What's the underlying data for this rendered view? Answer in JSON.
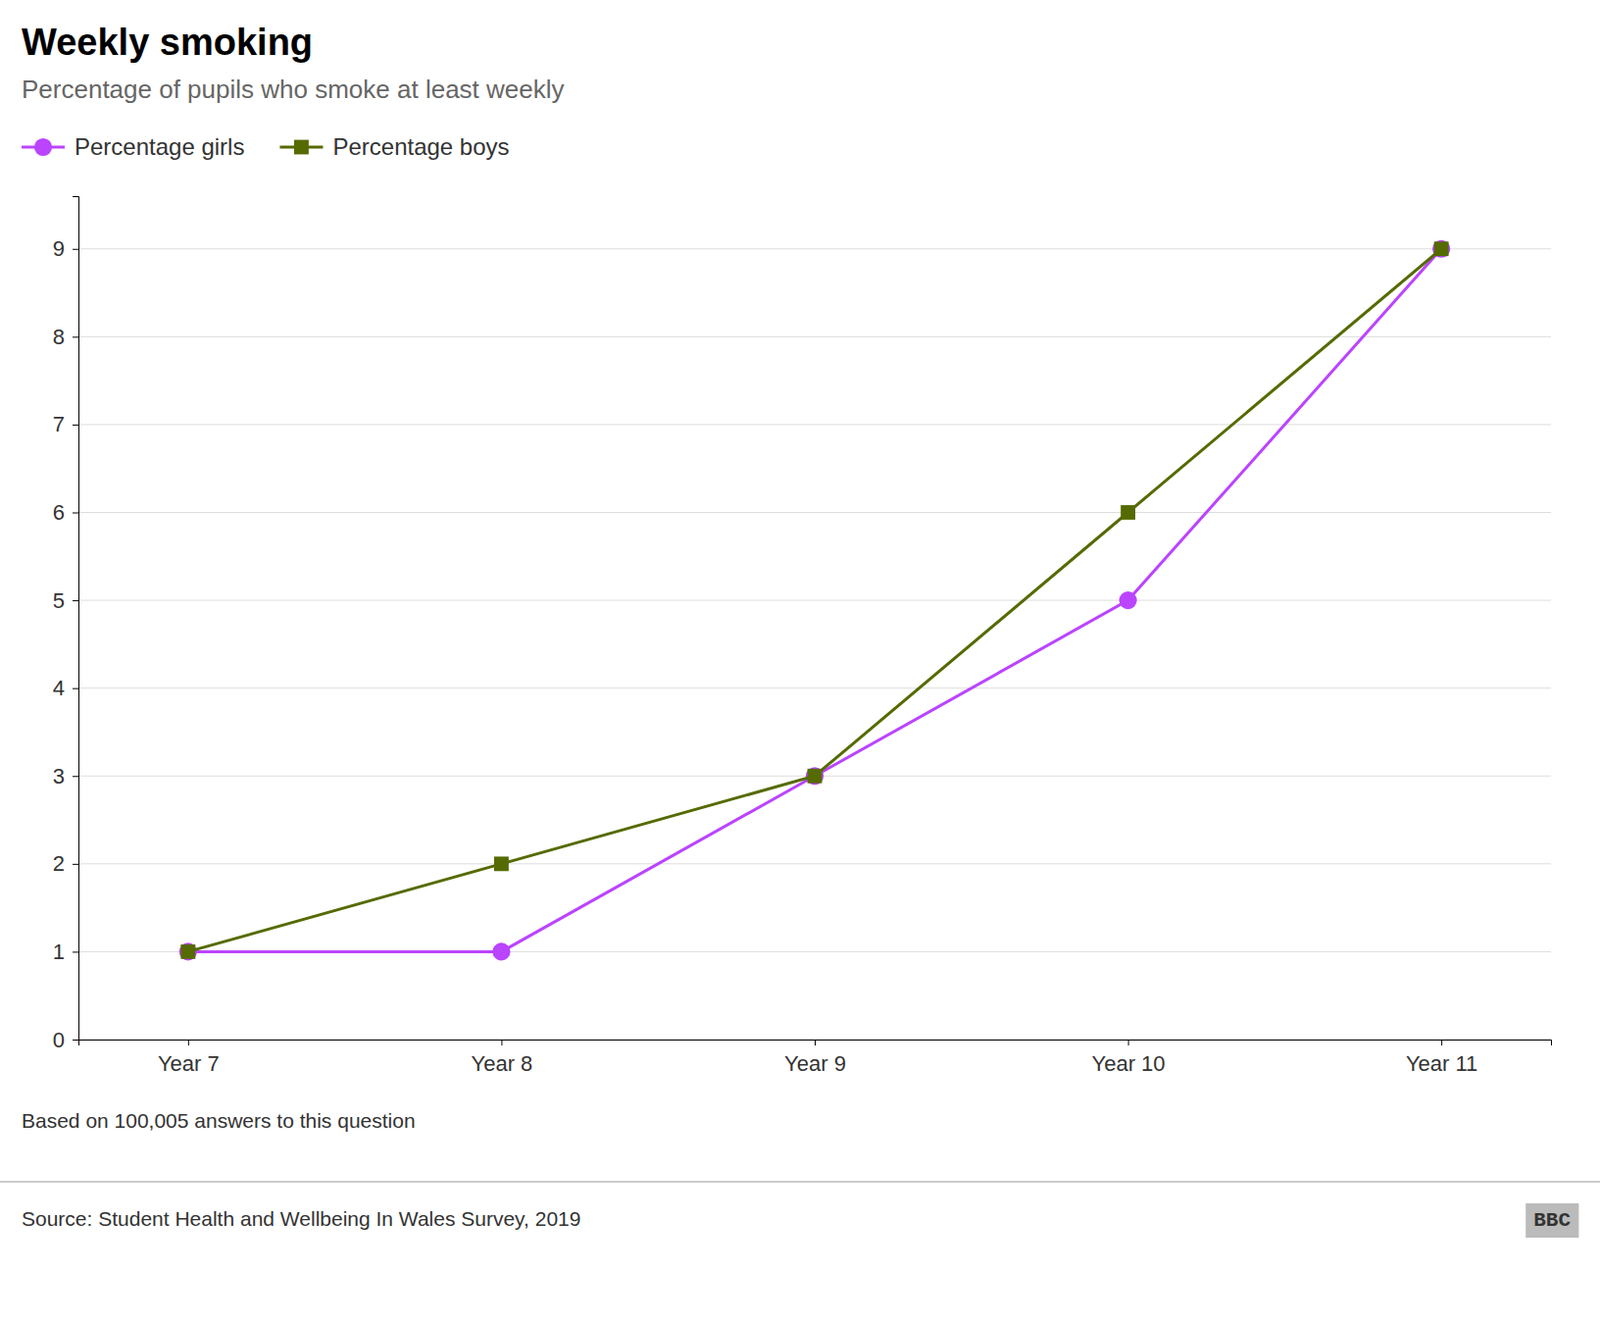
{
  "chart_data": {
    "type": "line",
    "title": "Weekly smoking",
    "subtitle": "Percentage of pupils who smoke at least weekly",
    "categories": [
      "Year 7",
      "Year 8",
      "Year 9",
      "Year 10",
      "Year 11"
    ],
    "series": [
      {
        "name": "Percentage girls",
        "color": "#bb44ff",
        "marker": "circle",
        "values": [
          1,
          1,
          3,
          5,
          9
        ]
      },
      {
        "name": "Percentage boys",
        "color": "#556b00",
        "marker": "square",
        "values": [
          1,
          2,
          3,
          6,
          9
        ]
      }
    ],
    "ylim": [
      0,
      9.6
    ],
    "yticks": [
      0,
      1,
      2,
      3,
      4,
      5,
      6,
      7,
      8,
      9
    ],
    "grid": true,
    "legend": "top-left",
    "annotations": [
      "Based on 100,005 answers to this question",
      "Source: Student Health and Wellbeing In Wales Survey, 2019",
      "BBC"
    ]
  }
}
